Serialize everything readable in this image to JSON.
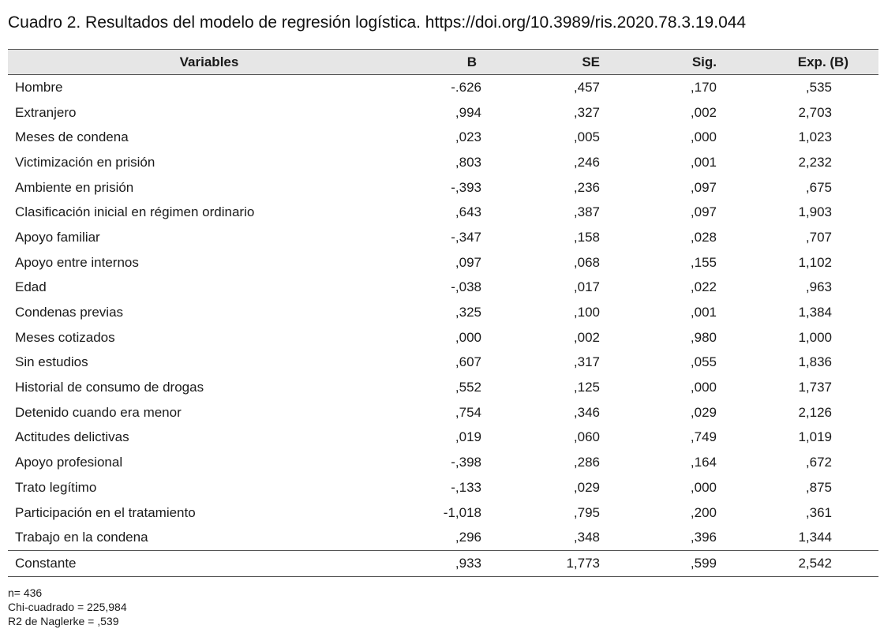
{
  "caption": "Cuadro 2. Resultados del modelo de regresión logística. https://doi.org/10.3989/ris.2020.78.3.19.044",
  "table": {
    "headers": [
      "Variables",
      "B",
      "SE",
      "Sig.",
      "Exp. (B)"
    ],
    "rows": [
      {
        "variable": "Hombre",
        "b": "-.626",
        "se": ",457",
        "sig": ",170",
        "exp": ",535"
      },
      {
        "variable": "Extranjero",
        "b": ",994",
        "se": ",327",
        "sig": ",002",
        "exp": "2,703"
      },
      {
        "variable": "Meses de condena",
        "b": ",023",
        "se": ",005",
        "sig": ",000",
        "exp": "1,023"
      },
      {
        "variable": "Victimización en prisión",
        "b": ",803",
        "se": ",246",
        "sig": ",001",
        "exp": "2,232"
      },
      {
        "variable": "Ambiente en prisión",
        "b": "-,393",
        "se": ",236",
        "sig": ",097",
        "exp": ",675"
      },
      {
        "variable": "Clasificación inicial en régimen ordinario",
        "b": ",643",
        "se": ",387",
        "sig": ",097",
        "exp": "1,903"
      },
      {
        "variable": "Apoyo familiar",
        "b": "-,347",
        "se": ",158",
        "sig": ",028",
        "exp": ",707"
      },
      {
        "variable": "Apoyo entre internos",
        "b": ",097",
        "se": ",068",
        "sig": ",155",
        "exp": "1,102"
      },
      {
        "variable": "Edad",
        "b": "-,038",
        "se": ",017",
        "sig": ",022",
        "exp": ",963"
      },
      {
        "variable": "Condenas previas",
        "b": ",325",
        "se": ",100",
        "sig": ",001",
        "exp": "1,384"
      },
      {
        "variable": "Meses cotizados",
        "b": ",000",
        "se": ",002",
        "sig": ",980",
        "exp": "1,000"
      },
      {
        "variable": "Sin estudios",
        "b": ",607",
        "se": ",317",
        "sig": ",055",
        "exp": "1,836"
      },
      {
        "variable": "Historial de consumo de drogas",
        "b": ",552",
        "se": ",125",
        "sig": ",000",
        "exp": "1,737"
      },
      {
        "variable": "Detenido cuando era menor",
        "b": ",754",
        "se": ",346",
        "sig": ",029",
        "exp": "2,126"
      },
      {
        "variable": "Actitudes delictivas",
        "b": ",019",
        "se": ",060",
        "sig": ",749",
        "exp": "1,019"
      },
      {
        "variable": "Apoyo profesional",
        "b": "-,398",
        "se": ",286",
        "sig": ",164",
        "exp": ",672"
      },
      {
        "variable": "Trato legítimo",
        "b": "-,133",
        "se": ",029",
        "sig": ",000",
        "exp": ",875"
      },
      {
        "variable": "Participación en el tratamiento",
        "b": "-1,018",
        "se": ",795",
        "sig": ",200",
        "exp": ",361"
      },
      {
        "variable": "Trabajo en la condena",
        "b": ",296",
        "se": ",348",
        "sig": ",396",
        "exp": "1,344"
      },
      {
        "variable": "Constante",
        "b": ",933",
        "se": "1,773",
        "sig": ",599",
        "exp": "2,542"
      }
    ]
  },
  "notes": [
    "n= 436",
    "Chi-cuadrado =  225,984",
    "R2 de Naglerke = ,539"
  ]
}
